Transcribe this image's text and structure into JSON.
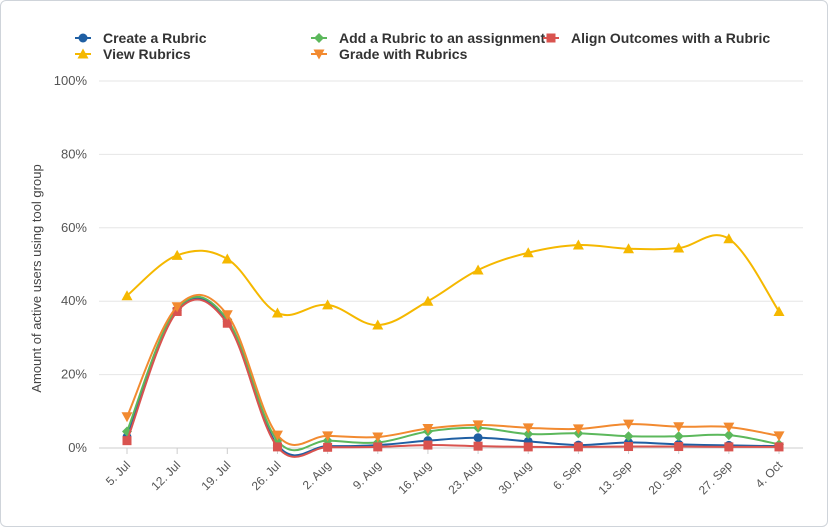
{
  "chart_data": {
    "type": "line",
    "title": "",
    "xlabel": "",
    "ylabel": "Amount of active users using tool group",
    "ylim": [
      0,
      100
    ],
    "yticks": [
      "0%",
      "20%",
      "40%",
      "60%",
      "80%",
      "100%"
    ],
    "ytick_values": [
      0,
      20,
      40,
      60,
      80,
      100
    ],
    "grid": true,
    "legend_position": "top",
    "categories": [
      "5. Jul",
      "12. Jul",
      "19. Jul",
      "26. Jul",
      "2. Aug",
      "9. Aug",
      "16. Aug",
      "23. Aug",
      "30. Aug",
      "6. Sep",
      "13. Sep",
      "20. Sep",
      "27. Sep",
      "4. Oct"
    ],
    "series": [
      {
        "name": "Create a Rubric",
        "color": "#1f5fa3",
        "marker": "circle",
        "values": [
          3,
          37.5,
          34.5,
          0.8,
          0.5,
          0.8,
          2,
          2.8,
          1.8,
          0.8,
          1.5,
          1,
          0.7,
          0.5
        ]
      },
      {
        "name": "Add a Rubric to an assignment",
        "color": "#5cb85c",
        "marker": "diamond",
        "values": [
          4.5,
          38,
          35,
          2,
          2,
          1.5,
          4.5,
          5.5,
          3.8,
          4,
          3.2,
          3.2,
          3.5,
          1
        ]
      },
      {
        "name": "Align Outcomes with a Rubric",
        "color": "#d9534f",
        "marker": "square",
        "values": [
          2,
          37.2,
          34,
          0.3,
          0.2,
          0.3,
          0.8,
          0.5,
          0.3,
          0.3,
          0.4,
          0.4,
          0.3,
          0.3
        ]
      },
      {
        "name": "View Rubrics",
        "color": "#f5b800",
        "marker": "triangle-up",
        "values": [
          41.5,
          52.5,
          51.5,
          36.8,
          39,
          33.5,
          40,
          48.5,
          53.2,
          55.3,
          54.3,
          54.5,
          57,
          37.2
        ]
      },
      {
        "name": "Grade with Rubrics",
        "color": "#f28a30",
        "marker": "triangle-down",
        "values": [
          8.5,
          38.5,
          36.3,
          3.5,
          3.3,
          3,
          5.3,
          6.3,
          5.5,
          5.2,
          6.5,
          5.8,
          5.7,
          3.3
        ]
      }
    ]
  }
}
